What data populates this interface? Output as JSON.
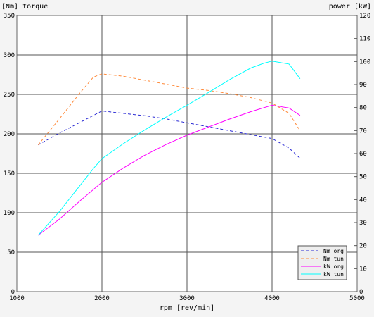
{
  "chart_data": {
    "type": "line",
    "left_axis_label": "[Nm] torque",
    "right_axis_label": "power [kW]",
    "xlabel": "rpm [rev/min]",
    "x_ticks": [
      1000,
      2000,
      3000,
      4000,
      5000
    ],
    "y_left_ticks": [
      0,
      50,
      100,
      150,
      200,
      250,
      300,
      350
    ],
    "y_right_ticks": [
      0,
      10,
      20,
      30,
      40,
      50,
      60,
      70,
      80,
      90,
      100,
      110,
      120
    ],
    "xlim": [
      1000,
      5000
    ],
    "ylim_left": [
      0,
      350
    ],
    "ylim_right": [
      0,
      120
    ],
    "grid": true,
    "legend_position": "bottom-right",
    "series": [
      {
        "name": "Nm org",
        "axis": "left",
        "color": "#2a2ad4",
        "dash": true,
        "x": [
          1250,
          1500,
          1750,
          2000,
          2250,
          2500,
          2750,
          3000,
          3250,
          3500,
          3750,
          4000,
          4200,
          4330
        ],
        "y": [
          186,
          201,
          215,
          229,
          226,
          223,
          219,
          214,
          209,
          204,
          199,
          194,
          182,
          169
        ]
      },
      {
        "name": "Nm tun",
        "axis": "left",
        "color": "#ff8a3a",
        "dash": true,
        "x": [
          1250,
          1500,
          1750,
          1900,
          2000,
          2250,
          2500,
          2750,
          3000,
          3250,
          3500,
          3750,
          4000,
          4200,
          4330
        ],
        "y": [
          186,
          219,
          253,
          272,
          276,
          273,
          268,
          263,
          258,
          255,
          251,
          246,
          239,
          226,
          204
        ]
      },
      {
        "name": "kW org",
        "axis": "right",
        "color": "#ff00ff",
        "dash": false,
        "x": [
          1250,
          1500,
          1750,
          2000,
          2250,
          2500,
          2750,
          3000,
          3250,
          3500,
          3750,
          4000,
          4200,
          4330
        ],
        "y": [
          24.5,
          31.5,
          39.7,
          47.5,
          53.7,
          59.2,
          63.9,
          68.0,
          71.5,
          75.0,
          78.2,
          81.0,
          79.8,
          76.6
        ]
      },
      {
        "name": "kW tun",
        "axis": "right",
        "color": "#00ffff",
        "dash": false,
        "x": [
          1250,
          1500,
          1750,
          1900,
          2000,
          2250,
          2500,
          2750,
          3000,
          3250,
          3500,
          3750,
          3900,
          4000,
          4200,
          4330
        ],
        "y": [
          24.5,
          34.8,
          46.5,
          53.5,
          57.8,
          64.3,
          70.2,
          75.8,
          81.0,
          86.5,
          92.1,
          97.2,
          99.2,
          100.2,
          98.9,
          92.5
        ]
      }
    ]
  }
}
